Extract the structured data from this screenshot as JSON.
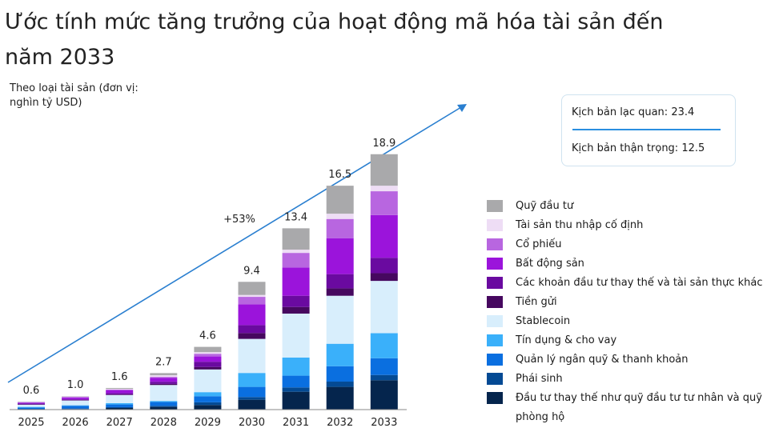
{
  "title": "Ước tính mức tăng trưởng của hoạt động mã hóa tài sản đến năm 2033",
  "unit_label": "Theo loại tài sản (đơn vị: nghìn tỷ USD)",
  "scenarios": {
    "optimistic": "Kịch bản lạc quan: 23.4",
    "conservative": "Kịch bản thận trọng: 12.5",
    "line_color": "#2a8fe0"
  },
  "chart_data": {
    "type": "bar",
    "stacked": true,
    "title": "",
    "categories": [
      "2025",
      "2026",
      "2027",
      "2028",
      "2029",
      "2030",
      "2031",
      "2032",
      "2033"
    ],
    "totals": [
      "0.6",
      "1.0",
      "1.6",
      "2.7",
      "4.6",
      "9.4",
      "13.4",
      "16.5",
      "18.9"
    ],
    "annotation": "+53%",
    "legend_position": "right",
    "grid": false,
    "ylim": [
      0,
      20
    ],
    "series": [
      {
        "name": "Đầu tư thay thế như quỹ đầu tư tư nhân và quỹ phòng hộ",
        "color": "#05254d",
        "values": [
          0.03,
          0.04,
          0.12,
          0.2,
          0.34,
          0.73,
          1.32,
          1.68,
          2.17
        ]
      },
      {
        "name": "Phái sinh",
        "color": "#044a94",
        "values": [
          0.03,
          0.04,
          0.06,
          0.08,
          0.2,
          0.2,
          0.32,
          0.39,
          0.39
        ]
      },
      {
        "name": "Quản lý ngân quỹ & thanh khoản",
        "color": "#0a6fe0",
        "values": [
          0.1,
          0.2,
          0.2,
          0.28,
          0.45,
          0.75,
          0.87,
          1.14,
          1.24
        ]
      },
      {
        "name": "Tín dụng & cho vay",
        "color": "#3ab0fa",
        "values": [
          0.04,
          0.04,
          0.1,
          0.08,
          0.3,
          1.03,
          1.34,
          1.66,
          1.85
        ]
      },
      {
        "name": "Stablecoin",
        "color": "#d8eefc",
        "values": [
          0.16,
          0.35,
          0.6,
          1.18,
          1.68,
          2.52,
          3.25,
          3.55,
          3.87
        ]
      },
      {
        "name": "Tiền gửi",
        "color": "#46085f",
        "values": [
          0.03,
          0.03,
          0.04,
          0.08,
          0.18,
          0.43,
          0.49,
          0.55,
          0.57
        ]
      },
      {
        "name": "Các khoản đầu tư thay thế và tài sản thực khác",
        "color": "#6a0aa0",
        "values": [
          0.06,
          0.06,
          0.1,
          0.16,
          0.39,
          0.59,
          0.83,
          1.05,
          1.14
        ]
      },
      {
        "name": "Bất động sản",
        "color": "#9b14db",
        "values": [
          0.06,
          0.12,
          0.2,
          0.28,
          0.39,
          1.54,
          2.09,
          2.66,
          3.16
        ]
      },
      {
        "name": "Cổ phiếu",
        "color": "#b866e0",
        "values": [
          0.04,
          0.06,
          0.06,
          0.08,
          0.2,
          0.55,
          1.08,
          1.42,
          1.76
        ]
      },
      {
        "name": "Tài sản thu nhập cố định",
        "color": "#eeddf5",
        "values": [
          0.03,
          0.04,
          0.06,
          0.12,
          0.12,
          0.14,
          0.24,
          0.39,
          0.41
        ]
      },
      {
        "name": "Quỹ đầu tư",
        "color": "#a9a9ab",
        "values": [
          0.02,
          0.02,
          0.06,
          0.16,
          0.39,
          0.97,
          1.58,
          2.07,
          2.33
        ]
      }
    ],
    "legend_order": [
      10,
      9,
      8,
      7,
      6,
      5,
      4,
      3,
      2,
      1,
      0
    ]
  }
}
